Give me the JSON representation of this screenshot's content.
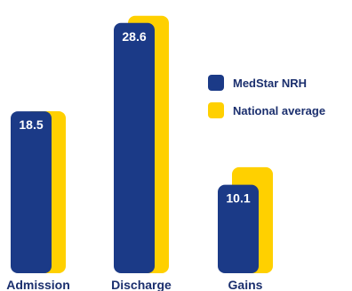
{
  "chart_data": {
    "type": "bar",
    "categories": [
      "Admission",
      "Discharge",
      "Gains"
    ],
    "series": [
      {
        "name": "MedStar NRH",
        "values": [
          18.5,
          28.6,
          10.1
        ],
        "color": "#1b3a87"
      },
      {
        "name": "National average",
        "values": [
          17.7,
          28.6,
          11.3
        ],
        "color": "#ffd000"
      }
    ],
    "data_labels": [
      "18.5",
      "28.6",
      "10.1"
    ],
    "ylim": [
      0,
      30
    ],
    "grid": false,
    "legend_position": "right"
  }
}
